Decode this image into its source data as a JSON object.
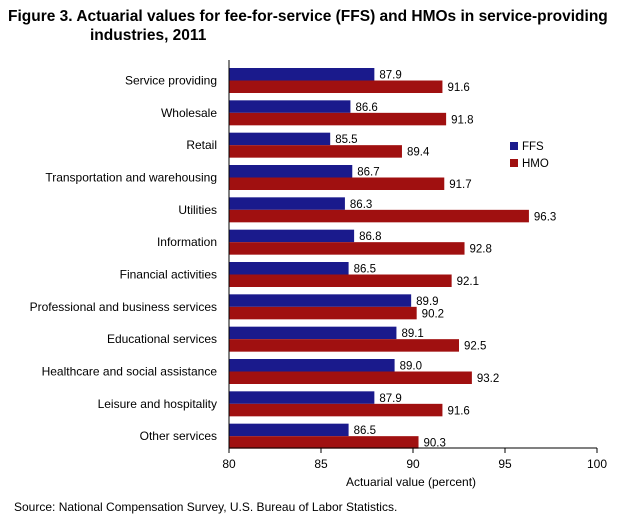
{
  "title_line1": "Figure 3. Actuarial values for fee-for-service (FFS) and HMOs in service-providing",
  "title_line2": "industries, 2011",
  "source": "Source: National Compensation Survey, U.S. Bureau of Labor Statistics.",
  "colors": {
    "FFS": "#1a1a8c",
    "HMO": "#a01010"
  },
  "chart_data": {
    "type": "bar",
    "orientation": "horizontal",
    "title": "Figure 3. Actuarial values for fee-for-service (FFS) and HMOs in service-providing industries, 2011",
    "xlabel": "Actuarial value (percent)",
    "ylabel": "",
    "xlim": [
      80,
      100
    ],
    "xticks": [
      "80",
      "85",
      "90",
      "95",
      "100"
    ],
    "xtick_values": [
      80,
      85,
      90,
      95,
      100
    ],
    "legend_position": "right",
    "grid": false,
    "categories": [
      "Service providing",
      "Wholesale",
      "Retail",
      "Transportation and warehousing",
      "Utilities",
      "Information",
      "Financial activities",
      "Professional and business services",
      "Educational services",
      "Healthcare and social assistance",
      "Leisure and hospitality",
      "Other services"
    ],
    "series": [
      {
        "name": "FFS",
        "values": [
          87.9,
          86.6,
          85.5,
          86.7,
          86.3,
          86.8,
          86.5,
          89.9,
          89.1,
          89.0,
          87.9,
          86.5
        ],
        "labels": [
          "87.9",
          "86.6",
          "85.5",
          "86.7",
          "86.3",
          "86.8",
          "86.5",
          "89.9",
          "89.1",
          "89.0",
          "87.9",
          "86.5"
        ]
      },
      {
        "name": "HMO",
        "values": [
          91.6,
          91.8,
          89.4,
          91.7,
          96.3,
          92.8,
          92.1,
          90.2,
          92.5,
          93.2,
          91.6,
          90.3
        ],
        "labels": [
          "91.6",
          "91.8",
          "89.4",
          "91.7",
          "96.3",
          "92.8",
          "92.1",
          "90.2",
          "92.5",
          "93.2",
          "91.6",
          "90.3"
        ]
      }
    ]
  }
}
